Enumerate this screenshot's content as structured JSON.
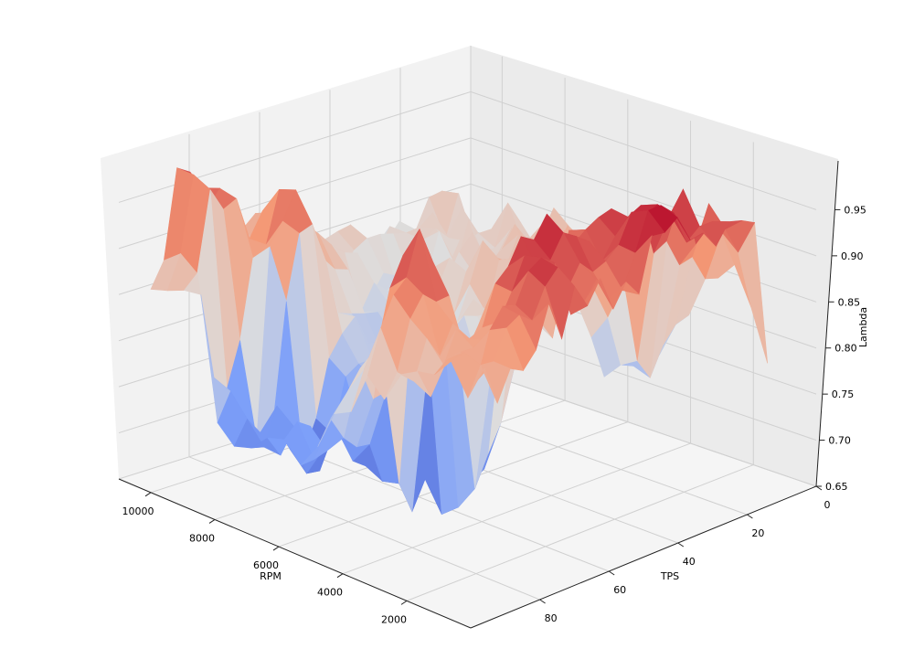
{
  "chart_data": {
    "type": "surface3d",
    "title": "",
    "xlabel": "RPM",
    "ylabel": "TPS",
    "zlabel": "Lambda",
    "x_ticks": [
      "10000",
      "8000",
      "6000",
      "4000",
      "2000"
    ],
    "y_ticks": [
      "0",
      "20",
      "40",
      "60",
      "80"
    ],
    "z_ticks": [
      "0.65",
      "0.70",
      "0.75",
      "0.80",
      "0.85",
      "0.90",
      "0.95"
    ],
    "xlim": [
      0,
      11000
    ],
    "ylim": [
      0,
      100
    ],
    "zlim": [
      0.65,
      1.0
    ],
    "colormap": "coolwarm",
    "grid": true,
    "surface_samples": [
      {
        "rpm": 10000,
        "tps": 95,
        "lambda": 0.81
      },
      {
        "rpm": 9500,
        "tps": 95,
        "lambda": 0.96
      },
      {
        "rpm": 8800,
        "tps": 95,
        "lambda": 0.97
      },
      {
        "rpm": 8500,
        "tps": 70,
        "lambda": 0.78
      },
      {
        "rpm": 8000,
        "tps": 90,
        "lambda": 0.97
      },
      {
        "rpm": 7000,
        "tps": 90,
        "lambda": 0.98
      },
      {
        "rpm": 6500,
        "tps": 80,
        "lambda": 0.96
      },
      {
        "rpm": 5000,
        "tps": 90,
        "lambda": 0.93
      },
      {
        "rpm": 4500,
        "tps": 80,
        "lambda": 0.98
      },
      {
        "rpm": 3000,
        "tps": 60,
        "lambda": 0.97
      },
      {
        "rpm": 3000,
        "tps": 20,
        "lambda": 0.94
      },
      {
        "rpm": 2000,
        "tps": 30,
        "lambda": 0.73
      },
      {
        "rpm": 2000,
        "tps": 5,
        "lambda": 0.95
      },
      {
        "rpm": 1000,
        "tps": 5,
        "lambda": 0.87
      },
      {
        "rpm": 7500,
        "tps": 50,
        "lambda": 0.88
      },
      {
        "rpm": 6000,
        "tps": 60,
        "lambda": 0.85
      },
      {
        "rpm": 5000,
        "tps": 50,
        "lambda": 0.82
      },
      {
        "rpm": 4000,
        "tps": 40,
        "lambda": 0.8
      },
      {
        "rpm": 3000,
        "tps": 40,
        "lambda": 0.72
      },
      {
        "rpm": 4000,
        "tps": 60,
        "lambda": 0.66
      },
      {
        "rpm": 3500,
        "tps": 50,
        "lambda": 0.68
      },
      {
        "rpm": 2500,
        "tps": 30,
        "lambda": 0.69
      },
      {
        "rpm": 2000,
        "tps": 20,
        "lambda": 0.72
      }
    ]
  }
}
